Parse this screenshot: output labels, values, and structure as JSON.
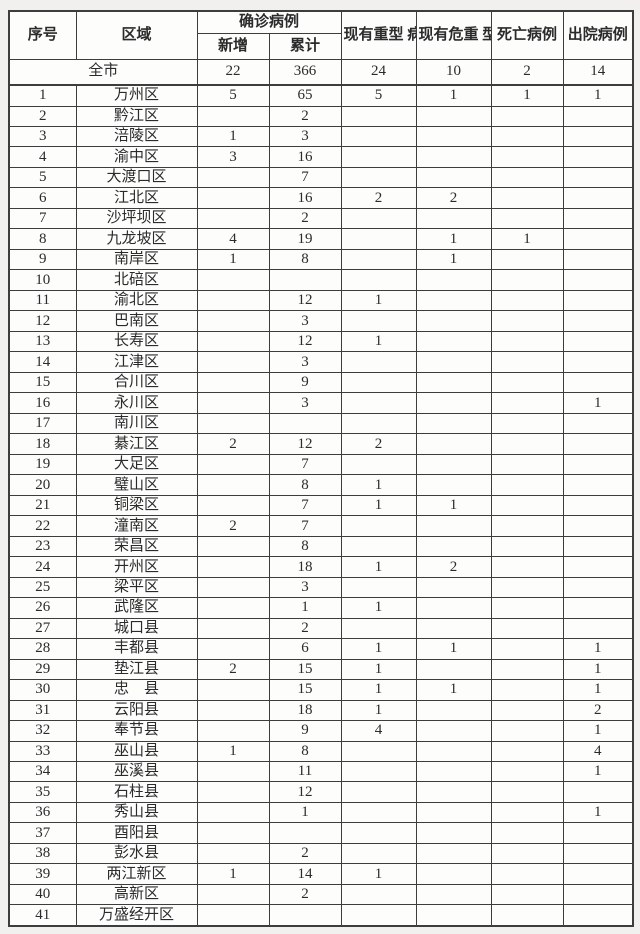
{
  "table": {
    "header": {
      "col_no": "序号",
      "col_region": "区域",
      "col_confirmed_group": "确诊病例",
      "col_new": "新增",
      "col_cumulative": "累计",
      "col_severe": "现有重型\n病例",
      "col_critical": "现有危重\n型病例",
      "col_deaths": "死亡病例",
      "col_discharged": "出院病例"
    },
    "total_row": {
      "region": "全市",
      "new_cases": "22",
      "cumulative": "366",
      "severe": "24",
      "critical": "10",
      "deaths": "2",
      "discharged": "14"
    },
    "rows": [
      {
        "no": "1",
        "region": "万州区",
        "new_cases": "5",
        "cumulative": "65",
        "severe": "5",
        "critical": "1",
        "deaths": "1",
        "discharged": "1"
      },
      {
        "no": "2",
        "region": "黔江区",
        "new_cases": "",
        "cumulative": "2",
        "severe": "",
        "critical": "",
        "deaths": "",
        "discharged": ""
      },
      {
        "no": "3",
        "region": "涪陵区",
        "new_cases": "1",
        "cumulative": "3",
        "severe": "",
        "critical": "",
        "deaths": "",
        "discharged": ""
      },
      {
        "no": "4",
        "region": "渝中区",
        "new_cases": "3",
        "cumulative": "16",
        "severe": "",
        "critical": "",
        "deaths": "",
        "discharged": ""
      },
      {
        "no": "5",
        "region": "大渡口区",
        "new_cases": "",
        "cumulative": "7",
        "severe": "",
        "critical": "",
        "deaths": "",
        "discharged": ""
      },
      {
        "no": "6",
        "region": "江北区",
        "new_cases": "",
        "cumulative": "16",
        "severe": "2",
        "critical": "2",
        "deaths": "",
        "discharged": ""
      },
      {
        "no": "7",
        "region": "沙坪坝区",
        "new_cases": "",
        "cumulative": "2",
        "severe": "",
        "critical": "",
        "deaths": "",
        "discharged": ""
      },
      {
        "no": "8",
        "region": "九龙坡区",
        "new_cases": "4",
        "cumulative": "19",
        "severe": "",
        "critical": "1",
        "deaths": "1",
        "discharged": ""
      },
      {
        "no": "9",
        "region": "南岸区",
        "new_cases": "1",
        "cumulative": "8",
        "severe": "",
        "critical": "1",
        "deaths": "",
        "discharged": ""
      },
      {
        "no": "10",
        "region": "北碚区",
        "new_cases": "",
        "cumulative": "",
        "severe": "",
        "critical": "",
        "deaths": "",
        "discharged": ""
      },
      {
        "no": "11",
        "region": "渝北区",
        "new_cases": "",
        "cumulative": "12",
        "severe": "1",
        "critical": "",
        "deaths": "",
        "discharged": ""
      },
      {
        "no": "12",
        "region": "巴南区",
        "new_cases": "",
        "cumulative": "3",
        "severe": "",
        "critical": "",
        "deaths": "",
        "discharged": ""
      },
      {
        "no": "13",
        "region": "长寿区",
        "new_cases": "",
        "cumulative": "12",
        "severe": "1",
        "critical": "",
        "deaths": "",
        "discharged": ""
      },
      {
        "no": "14",
        "region": "江津区",
        "new_cases": "",
        "cumulative": "3",
        "severe": "",
        "critical": "",
        "deaths": "",
        "discharged": ""
      },
      {
        "no": "15",
        "region": "合川区",
        "new_cases": "",
        "cumulative": "9",
        "severe": "",
        "critical": "",
        "deaths": "",
        "discharged": ""
      },
      {
        "no": "16",
        "region": "永川区",
        "new_cases": "",
        "cumulative": "3",
        "severe": "",
        "critical": "",
        "deaths": "",
        "discharged": "1"
      },
      {
        "no": "17",
        "region": "南川区",
        "new_cases": "",
        "cumulative": "",
        "severe": "",
        "critical": "",
        "deaths": "",
        "discharged": ""
      },
      {
        "no": "18",
        "region": "綦江区",
        "new_cases": "2",
        "cumulative": "12",
        "severe": "2",
        "critical": "",
        "deaths": "",
        "discharged": ""
      },
      {
        "no": "19",
        "region": "大足区",
        "new_cases": "",
        "cumulative": "7",
        "severe": "",
        "critical": "",
        "deaths": "",
        "discharged": ""
      },
      {
        "no": "20",
        "region": "璧山区",
        "new_cases": "",
        "cumulative": "8",
        "severe": "1",
        "critical": "",
        "deaths": "",
        "discharged": ""
      },
      {
        "no": "21",
        "region": "铜梁区",
        "new_cases": "",
        "cumulative": "7",
        "severe": "1",
        "critical": "1",
        "deaths": "",
        "discharged": ""
      },
      {
        "no": "22",
        "region": "潼南区",
        "new_cases": "2",
        "cumulative": "7",
        "severe": "",
        "critical": "",
        "deaths": "",
        "discharged": ""
      },
      {
        "no": "23",
        "region": "荣昌区",
        "new_cases": "",
        "cumulative": "8",
        "severe": "",
        "critical": "",
        "deaths": "",
        "discharged": ""
      },
      {
        "no": "24",
        "region": "开州区",
        "new_cases": "",
        "cumulative": "18",
        "severe": "1",
        "critical": "2",
        "deaths": "",
        "discharged": ""
      },
      {
        "no": "25",
        "region": "梁平区",
        "new_cases": "",
        "cumulative": "3",
        "severe": "",
        "critical": "",
        "deaths": "",
        "discharged": ""
      },
      {
        "no": "26",
        "region": "武隆区",
        "new_cases": "",
        "cumulative": "1",
        "severe": "1",
        "critical": "",
        "deaths": "",
        "discharged": ""
      },
      {
        "no": "27",
        "region": "城口县",
        "new_cases": "",
        "cumulative": "2",
        "severe": "",
        "critical": "",
        "deaths": "",
        "discharged": ""
      },
      {
        "no": "28",
        "region": "丰都县",
        "new_cases": "",
        "cumulative": "6",
        "severe": "1",
        "critical": "1",
        "deaths": "",
        "discharged": "1"
      },
      {
        "no": "29",
        "region": "垫江县",
        "new_cases": "2",
        "cumulative": "15",
        "severe": "1",
        "critical": "",
        "deaths": "",
        "discharged": "1"
      },
      {
        "no": "30",
        "region": "忠　县",
        "new_cases": "",
        "cumulative": "15",
        "severe": "1",
        "critical": "1",
        "deaths": "",
        "discharged": "1"
      },
      {
        "no": "31",
        "region": "云阳县",
        "new_cases": "",
        "cumulative": "18",
        "severe": "1",
        "critical": "",
        "deaths": "",
        "discharged": "2"
      },
      {
        "no": "32",
        "region": "奉节县",
        "new_cases": "",
        "cumulative": "9",
        "severe": "4",
        "critical": "",
        "deaths": "",
        "discharged": "1"
      },
      {
        "no": "33",
        "region": "巫山县",
        "new_cases": "1",
        "cumulative": "8",
        "severe": "",
        "critical": "",
        "deaths": "",
        "discharged": "4"
      },
      {
        "no": "34",
        "region": "巫溪县",
        "new_cases": "",
        "cumulative": "11",
        "severe": "",
        "critical": "",
        "deaths": "",
        "discharged": "1"
      },
      {
        "no": "35",
        "region": "石柱县",
        "new_cases": "",
        "cumulative": "12",
        "severe": "",
        "critical": "",
        "deaths": "",
        "discharged": ""
      },
      {
        "no": "36",
        "region": "秀山县",
        "new_cases": "",
        "cumulative": "1",
        "severe": "",
        "critical": "",
        "deaths": "",
        "discharged": "1"
      },
      {
        "no": "37",
        "region": "酉阳县",
        "new_cases": "",
        "cumulative": "",
        "severe": "",
        "critical": "",
        "deaths": "",
        "discharged": ""
      },
      {
        "no": "38",
        "region": "彭水县",
        "new_cases": "",
        "cumulative": "2",
        "severe": "",
        "critical": "",
        "deaths": "",
        "discharged": ""
      },
      {
        "no": "39",
        "region": "两江新区",
        "new_cases": "1",
        "cumulative": "14",
        "severe": "1",
        "critical": "",
        "deaths": "",
        "discharged": ""
      },
      {
        "no": "40",
        "region": "高新区",
        "new_cases": "",
        "cumulative": "2",
        "severe": "",
        "critical": "",
        "deaths": "",
        "discharged": ""
      },
      {
        "no": "41",
        "region": "万盛经开区",
        "new_cases": "",
        "cumulative": "",
        "severe": "",
        "critical": "",
        "deaths": "",
        "discharged": ""
      }
    ]
  }
}
